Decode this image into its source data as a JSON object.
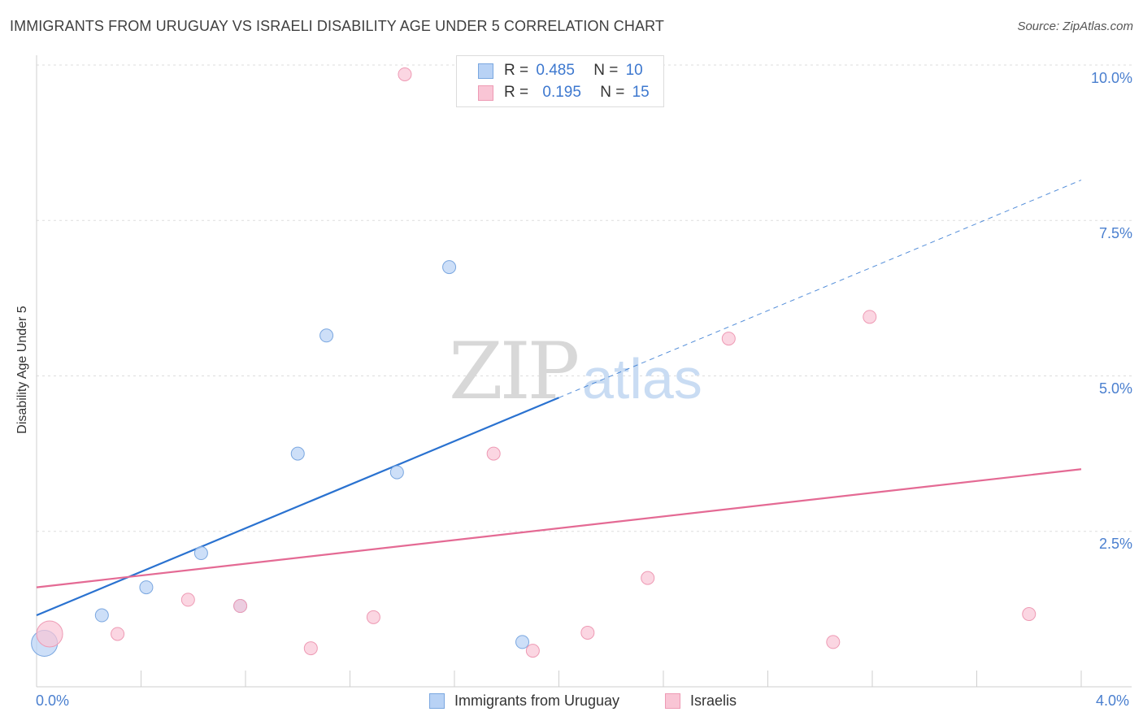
{
  "title": "IMMIGRANTS FROM URUGUAY VS ISRAELI DISABILITY AGE UNDER 5 CORRELATION CHART",
  "source": "Source: ZipAtlas.com",
  "watermark": {
    "zip": "ZIP",
    "atlas": "atlas"
  },
  "colors": {
    "blue_fill": "#b8d2f5",
    "blue_stroke": "#7aa7e0",
    "blue_line": "#2a72d0",
    "pink_fill": "#f9c5d5",
    "pink_stroke": "#ee9ab4",
    "pink_line": "#e46a94",
    "tick_text": "#4a7fcf",
    "grid": "#dddddd"
  },
  "legend_top": [
    {
      "r_label": "R =",
      "r_value": "0.485",
      "n_label": "N =",
      "n_value": "10"
    },
    {
      "r_label": "R =",
      "r_value": "0.195",
      "n_label": "N =",
      "n_value": "15"
    }
  ],
  "chart_data": {
    "type": "scatter",
    "title": "IMMIGRANTS FROM URUGUAY VS ISRAELI DISABILITY AGE UNDER 5 CORRELATION CHART",
    "xlabel": "",
    "ylabel": "Disability Age Under 5",
    "xlim": [
      0,
      4.0
    ],
    "ylim": [
      0,
      10.0
    ],
    "x_tick_labels": [
      "0.0%",
      "4.0%"
    ],
    "y_ticks": [
      2.5,
      5.0,
      7.5,
      10.0
    ],
    "y_tick_labels": [
      "2.5%",
      "5.0%",
      "7.5%",
      "10.0%"
    ],
    "grid": true,
    "series": [
      {
        "name": "Immigrants from Uruguay",
        "points": [
          {
            "x": 0.03,
            "y": 0.7,
            "size": "large"
          },
          {
            "x": 0.25,
            "y": 1.15
          },
          {
            "x": 0.42,
            "y": 1.6
          },
          {
            "x": 0.63,
            "y": 2.15
          },
          {
            "x": 0.78,
            "y": 1.3
          },
          {
            "x": 1.0,
            "y": 3.75
          },
          {
            "x": 1.11,
            "y": 5.65
          },
          {
            "x": 1.38,
            "y": 3.45
          },
          {
            "x": 1.58,
            "y": 6.75
          },
          {
            "x": 1.86,
            "y": 0.72
          }
        ],
        "trend": {
          "x_start": 0.0,
          "y_start": 1.15,
          "x_solid_end": 2.0,
          "y_solid_end": 4.65,
          "x_end": 4.0,
          "y_end": 8.15
        }
      },
      {
        "name": "Israelis",
        "points": [
          {
            "x": 0.05,
            "y": 0.85,
            "size": "large"
          },
          {
            "x": 0.31,
            "y": 0.85
          },
          {
            "x": 0.58,
            "y": 1.4
          },
          {
            "x": 0.78,
            "y": 1.3
          },
          {
            "x": 1.05,
            "y": 0.62
          },
          {
            "x": 1.29,
            "y": 1.12
          },
          {
            "x": 1.41,
            "y": 9.85
          },
          {
            "x": 1.75,
            "y": 3.75
          },
          {
            "x": 1.9,
            "y": 0.58
          },
          {
            "x": 2.11,
            "y": 0.87
          },
          {
            "x": 2.34,
            "y": 1.75
          },
          {
            "x": 2.65,
            "y": 5.6
          },
          {
            "x": 3.05,
            "y": 0.72
          },
          {
            "x": 3.19,
            "y": 5.95
          },
          {
            "x": 3.8,
            "y": 1.17
          }
        ],
        "trend": {
          "x_start": 0.0,
          "y_start": 1.6,
          "x_end": 4.0,
          "y_end": 3.5
        }
      }
    ],
    "legend": [
      "Immigrants from Uruguay",
      "Israelis"
    ]
  }
}
